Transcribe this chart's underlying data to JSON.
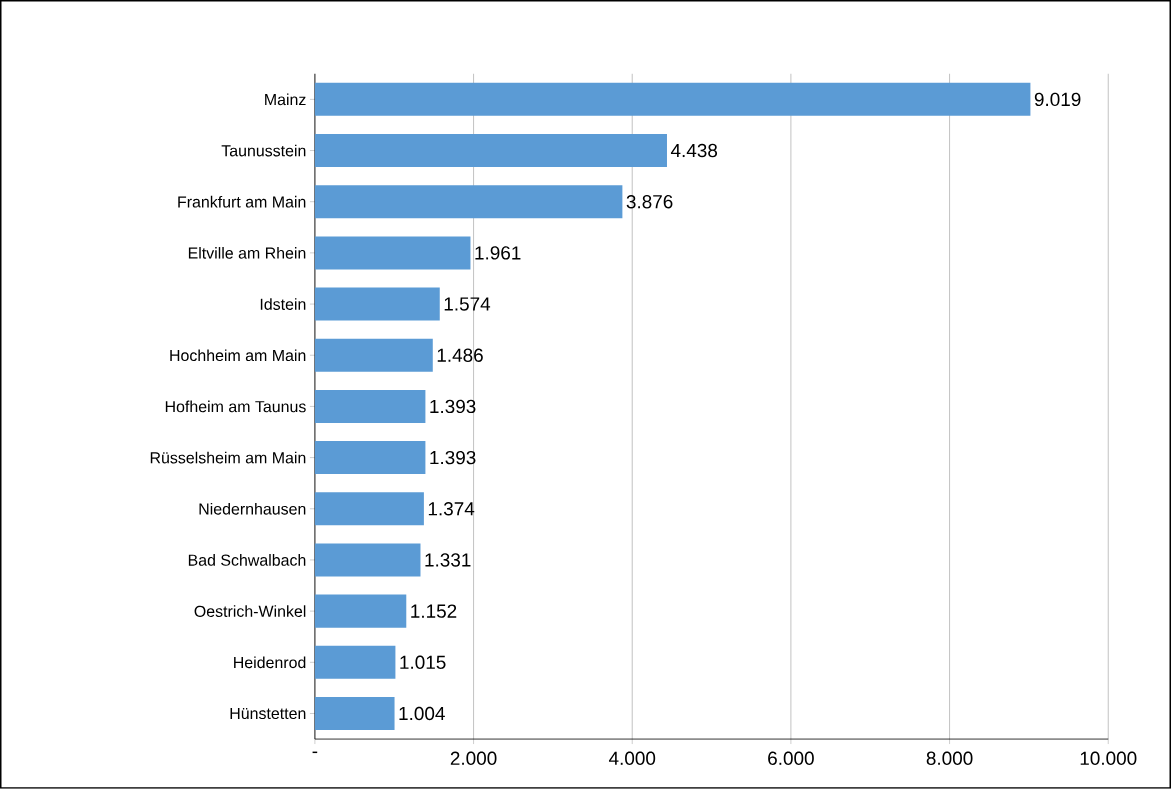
{
  "chart_data": {
    "type": "bar",
    "orientation": "horizontal",
    "categories": [
      "Mainz",
      "Taunusstein",
      "Frankfurt am Main",
      "Eltville am Rhein",
      "Idstein",
      "Hochheim am Main",
      "Hofheim am Taunus",
      "Rüsselsheim am Main",
      "Niedernhausen",
      "Bad Schwalbach",
      "Oestrich-Winkel",
      "Heidenrod",
      "Hünstetten"
    ],
    "values": [
      9019,
      4438,
      3876,
      1961,
      1574,
      1486,
      1393,
      1393,
      1374,
      1331,
      1152,
      1015,
      1004
    ],
    "value_labels": [
      "9.019",
      "4.438",
      "3.876",
      "1.961",
      "1.574",
      "1.486",
      "1.393",
      "1.393",
      "1.374",
      "1.331",
      "1.152",
      "1.015",
      "1.004"
    ],
    "color": "#5b9bd5",
    "xlim": [
      0,
      10000
    ],
    "xticks": [
      {
        "value": 0,
        "label": "-"
      },
      {
        "value": 2000,
        "label": "2.000"
      },
      {
        "value": 4000,
        "label": "4.000"
      },
      {
        "value": 6000,
        "label": "6.000"
      },
      {
        "value": 8000,
        "label": "8.000"
      },
      {
        "value": 10000,
        "label": "10.000"
      }
    ],
    "grid": "x"
  }
}
